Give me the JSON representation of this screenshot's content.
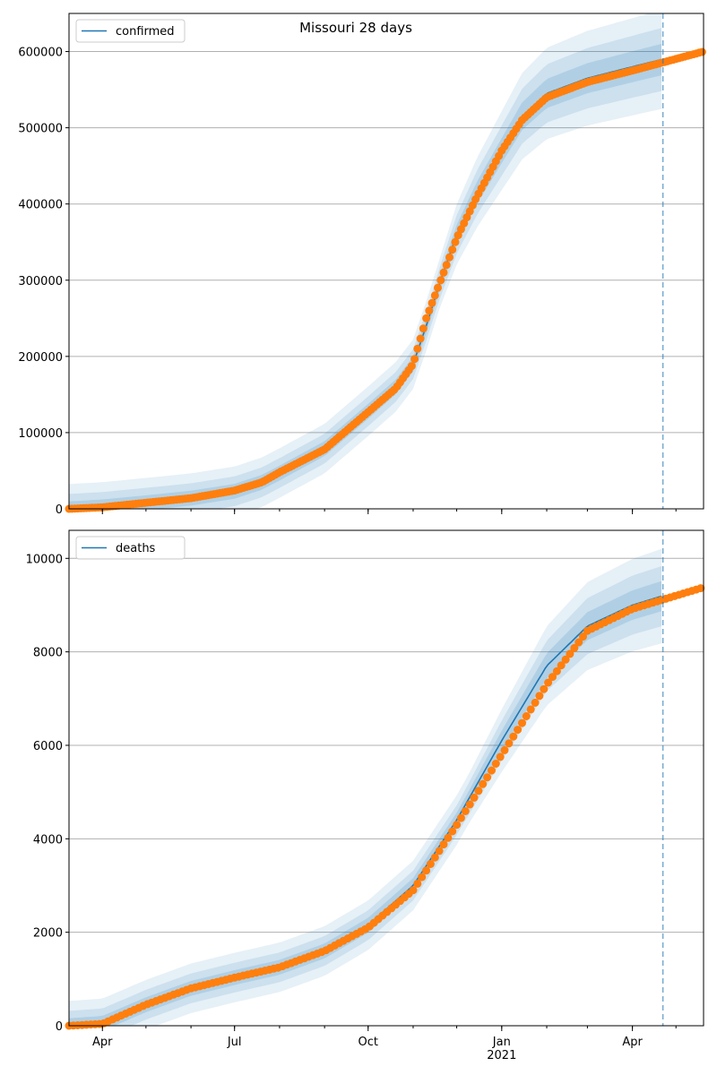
{
  "figure": {
    "title": "Missouri 28 days",
    "x_tick_labels": [
      "Apr",
      "Jul",
      "Oct",
      "Jan",
      "Apr"
    ],
    "x_year_label": "2021"
  },
  "colors": {
    "model_line": "#1f77b4",
    "band": "#1f77b4",
    "observed": "#ff7f0e",
    "grid": "#b0b0b0",
    "forecast_marker": "#1f77b4"
  },
  "chart_data": [
    {
      "type": "line",
      "legend": [
        "confirmed"
      ],
      "legend_placement": "upper-left",
      "grid": "horizontal",
      "x_range": [
        "2020-03-09",
        "2021-05-20"
      ],
      "ylim": [
        0,
        650000
      ],
      "y_ticks": [
        0,
        100000,
        200000,
        300000,
        400000,
        500000,
        600000
      ],
      "forecast_start": "2021-04-22",
      "series": [
        {
          "name": "confirmed",
          "style": "model line with uncertainty bands",
          "points": [
            [
              "2020-03-09",
              0
            ],
            [
              "2020-04-01",
              2500
            ],
            [
              "2020-05-01",
              8000
            ],
            [
              "2020-06-01",
              14000
            ],
            [
              "2020-07-01",
              23000
            ],
            [
              "2020-07-20",
              35000
            ],
            [
              "2020-08-01",
              47000
            ],
            [
              "2020-09-01",
              79000
            ],
            [
              "2020-10-01",
              128000
            ],
            [
              "2020-10-20",
              160000
            ],
            [
              "2020-11-01",
              190000
            ],
            [
              "2020-11-10",
              240000
            ],
            [
              "2020-11-20",
              300000
            ],
            [
              "2020-12-01",
              360000
            ],
            [
              "2020-12-15",
              415000
            ],
            [
              "2021-01-01",
              470000
            ],
            [
              "2021-01-15",
              515000
            ],
            [
              "2021-02-01",
              545000
            ],
            [
              "2021-03-01",
              565000
            ],
            [
              "2021-04-01",
              580000
            ],
            [
              "2021-04-22",
              590000
            ]
          ]
        },
        {
          "name": "observed",
          "style": "markers",
          "points": [
            [
              "2020-03-09",
              0
            ],
            [
              "2020-04-01",
              2000
            ],
            [
              "2020-05-01",
              8000
            ],
            [
              "2020-06-01",
              14000
            ],
            [
              "2020-07-01",
              24000
            ],
            [
              "2020-07-20",
              35000
            ],
            [
              "2020-08-01",
              48000
            ],
            [
              "2020-09-01",
              78000
            ],
            [
              "2020-10-01",
              127000
            ],
            [
              "2020-10-20",
              158000
            ],
            [
              "2020-11-01",
              190000
            ],
            [
              "2020-11-10",
              250000
            ],
            [
              "2020-11-20",
              300000
            ],
            [
              "2020-12-01",
              355000
            ],
            [
              "2020-12-15",
              410000
            ],
            [
              "2021-01-01",
              470000
            ],
            [
              "2021-01-15",
              510000
            ],
            [
              "2021-02-01",
              540000
            ],
            [
              "2021-03-01",
              560000
            ],
            [
              "2021-04-01",
              575000
            ],
            [
              "2021-05-20",
              600000
            ]
          ]
        }
      ]
    },
    {
      "type": "line",
      "legend": [
        "deaths"
      ],
      "legend_placement": "upper-left",
      "grid": "horizontal",
      "x_range": [
        "2020-03-09",
        "2021-05-20"
      ],
      "ylim": [
        0,
        10600
      ],
      "y_ticks": [
        0,
        2000,
        4000,
        6000,
        8000,
        10000
      ],
      "forecast_start": "2021-04-22",
      "series": [
        {
          "name": "deaths",
          "style": "model line with uncertainty bands",
          "points": [
            [
              "2020-03-09",
              0
            ],
            [
              "2020-04-01",
              50
            ],
            [
              "2020-05-01",
              450
            ],
            [
              "2020-06-01",
              800
            ],
            [
              "2020-07-01",
              1030
            ],
            [
              "2020-08-01",
              1250
            ],
            [
              "2020-09-01",
              1600
            ],
            [
              "2020-10-01",
              2150
            ],
            [
              "2020-11-01",
              3000
            ],
            [
              "2020-12-01",
              4400
            ],
            [
              "2021-01-01",
              6100
            ],
            [
              "2021-02-01",
              7700
            ],
            [
              "2021-03-01",
              8550
            ],
            [
              "2021-04-01",
              9000
            ],
            [
              "2021-04-22",
              9200
            ]
          ]
        },
        {
          "name": "observed",
          "style": "markers",
          "points": [
            [
              "2020-03-09",
              0
            ],
            [
              "2020-04-01",
              40
            ],
            [
              "2020-05-01",
              450
            ],
            [
              "2020-06-01",
              800
            ],
            [
              "2020-07-01",
              1030
            ],
            [
              "2020-08-01",
              1250
            ],
            [
              "2020-09-01",
              1600
            ],
            [
              "2020-10-01",
              2100
            ],
            [
              "2020-11-01",
              2900
            ],
            [
              "2020-12-01",
              4300
            ],
            [
              "2021-01-01",
              5800
            ],
            [
              "2021-02-01",
              7300
            ],
            [
              "2021-03-01",
              8450
            ],
            [
              "2021-04-01",
              8920
            ],
            [
              "2021-05-20",
              9380
            ]
          ]
        }
      ]
    }
  ]
}
